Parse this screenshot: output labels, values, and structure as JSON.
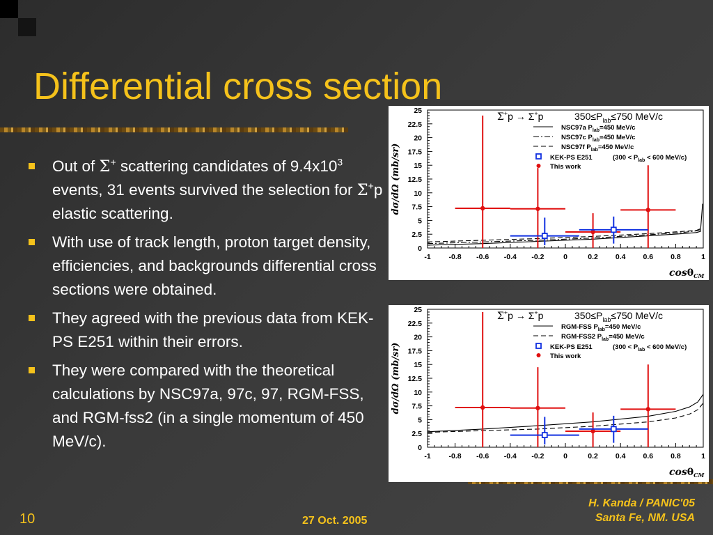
{
  "slide": {
    "title": "Differential cross section",
    "bullets": [
      {
        "t1": "Out of ",
        "sym1": "Σ",
        "sup1": "+",
        "t2": " scattering candidates of 9.4x10",
        "sup2": "3",
        "t3": " events, 31 events survived the selection for ",
        "sym2": "Σ",
        "sup3": "+",
        "t4": "p elastic scattering."
      },
      {
        "text": "With use of track length, proton target density, efficiencies, and backgrounds differential cross sections were obtained."
      },
      {
        "text": "They agreed with the previous data from KEK-PS E251 within their errors."
      },
      {
        "text": "They were compared with the theoretical calculations by NSC97a, 97c, 97, RGM-FSS, and RGM-fss2 (in a single momentum of 450 MeV/c)."
      }
    ],
    "footer": {
      "page": "10",
      "date": "27 Oct. 2005",
      "author_line1": "H. Kanda / PANIC'05",
      "author_line2": "Santa Fe, NM. USA"
    },
    "colors": {
      "title": "#f5c21b",
      "bullet": "#f5c21b",
      "text": "#ffffff",
      "background": "#3a3a3a"
    }
  },
  "chart_data": [
    {
      "type": "scatter",
      "reaction": {
        "a": "Σ",
        "b": "+",
        "c": "p → Σ",
        "d": "+",
        "e": "p"
      },
      "range": {
        "a": "350",
        "b": "≤",
        "c": "P",
        "d": "lab",
        "e": "≤",
        "f": "750 MeV/c"
      },
      "xlabel": {
        "a": "cos",
        "b": "θ",
        "c": "CM"
      },
      "ylabel": "dσ/dΩ (mb/sr)",
      "xlim": [
        -1,
        1
      ],
      "ylim": [
        0,
        25
      ],
      "xticks": [
        "-1",
        "-0.8",
        "-0.6",
        "-0.4",
        "-0.2",
        "0",
        "0.2",
        "0.4",
        "0.6",
        "0.8",
        "1"
      ],
      "yticks": [
        "0",
        "2.5",
        "5",
        "7.5",
        "10",
        "12.5",
        "15",
        "17.5",
        "20",
        "22.5",
        "25"
      ],
      "legend": [
        {
          "style": "solid",
          "a": "NSC97a  P",
          "b": "lab",
          "c": "=450 MeV/c"
        },
        {
          "style": "dashdot",
          "a": "NSC97c  P",
          "b": "lab",
          "c": "=450 MeV/c"
        },
        {
          "style": "dashed",
          "a": "NSC97f  P",
          "b": "lab",
          "c": "=450 MeV/c"
        }
      ],
      "series": [
        {
          "name": "This work",
          "marker": "circle",
          "color": "#e01010",
          "points": [
            {
              "x": -0.6,
              "y": 7.2,
              "xerr": 0.2,
              "ylo": 0,
              "yhi": 24
            },
            {
              "x": -0.2,
              "y": 7.1,
              "xerr": 0.2,
              "ylo": 0,
              "yhi": 14.5
            },
            {
              "x": 0.2,
              "y": 2.9,
              "xerr": 0.2,
              "ylo": 0,
              "yhi": 6.3
            },
            {
              "x": 0.6,
              "y": 6.9,
              "xerr": 0.2,
              "ylo": 0,
              "yhi": 15
            }
          ]
        },
        {
          "name": "KEK-PS E251",
          "range_note": {
            "a": "(300 < P",
            "b": "lab",
            "c": " < 600 MeV/c)"
          },
          "marker": "square",
          "color": "#1030e0",
          "points": [
            {
              "x": -0.15,
              "y": 2.2,
              "xerr": 0.25,
              "ylo": 0.5,
              "yhi": 5.5
            },
            {
              "x": 0.35,
              "y": 3.3,
              "xerr": 0.25,
              "ylo": 0.8,
              "yhi": 5.7
            }
          ]
        }
      ],
      "curves": [
        {
          "style": "solid",
          "x": [
            -1,
            -0.6,
            -0.2,
            0.2,
            0.6,
            0.85,
            0.95,
            0.98,
            0.995
          ],
          "y": [
            0.5,
            0.8,
            1.2,
            1.6,
            2.2,
            2.6,
            2.8,
            3,
            8
          ]
        },
        {
          "style": "dashdot",
          "x": [
            -1,
            -0.6,
            -0.2,
            0.2,
            0.6,
            0.85,
            0.95,
            0.99
          ],
          "y": [
            0.8,
            1.1,
            1.4,
            1.8,
            2.4,
            2.8,
            3.1,
            3.4
          ]
        },
        {
          "style": "dashed",
          "x": [
            -1,
            -0.6,
            -0.2,
            0.2,
            0.6,
            0.85,
            0.95,
            0.99
          ],
          "y": [
            1.1,
            1.4,
            1.7,
            2.1,
            2.6,
            3,
            3.2,
            3.6
          ]
        }
      ]
    },
    {
      "type": "scatter",
      "reaction": {
        "a": "Σ",
        "b": "+",
        "c": "p → Σ",
        "d": "+",
        "e": "p"
      },
      "range": {
        "a": "350",
        "b": "≤",
        "c": "P",
        "d": "lab",
        "e": "≤",
        "f": "750 MeV/c"
      },
      "xlabel": {
        "a": "cos",
        "b": "θ",
        "c": "CM"
      },
      "ylabel": "dσ/dΩ (mb/sr)",
      "xlim": [
        -1,
        1
      ],
      "ylim": [
        0,
        25
      ],
      "xticks": [
        "-1",
        "-0.8",
        "-0.6",
        "-0.4",
        "-0.2",
        "0",
        "0.2",
        "0.4",
        "0.6",
        "0.8",
        "1"
      ],
      "yticks": [
        "0",
        "2.5",
        "5",
        "7.5",
        "10",
        "12.5",
        "15",
        "17.5",
        "20",
        "22.5",
        "25"
      ],
      "legend": [
        {
          "style": "solid",
          "a": "RGM-FSS   P",
          "b": "lab",
          "c": "=450 MeV/c"
        },
        {
          "style": "dashed",
          "a": "RGM-FSS2  P",
          "b": "lab",
          "c": "=450 MeV/c"
        }
      ],
      "series": [
        {
          "name": "This work",
          "marker": "circle",
          "color": "#e01010",
          "points": [
            {
              "x": -0.6,
              "y": 7.2,
              "xerr": 0.2,
              "ylo": 0,
              "yhi": 24.5
            },
            {
              "x": -0.2,
              "y": 7.1,
              "xerr": 0.2,
              "ylo": 0,
              "yhi": 14.5
            },
            {
              "x": 0.2,
              "y": 2.9,
              "xerr": 0.2,
              "ylo": 0,
              "yhi": 6.3
            },
            {
              "x": 0.6,
              "y": 6.9,
              "xerr": 0.2,
              "ylo": 0,
              "yhi": 15
            }
          ]
        },
        {
          "name": "KEK-PS E251",
          "range_note": {
            "a": "(300 < P",
            "b": "lab",
            "c": " < 600 MeV/c)"
          },
          "marker": "square",
          "color": "#1030e0",
          "points": [
            {
              "x": -0.15,
              "y": 2.2,
              "xerr": 0.25,
              "ylo": 0.5,
              "yhi": 5.5
            },
            {
              "x": 0.35,
              "y": 3.3,
              "xerr": 0.25,
              "ylo": 0.8,
              "yhi": 5.7
            }
          ]
        }
      ],
      "curves": [
        {
          "style": "solid",
          "x": [
            -1,
            -0.6,
            -0.2,
            0.2,
            0.6,
            0.8,
            0.9,
            0.96,
            1
          ],
          "y": [
            2.8,
            3.3,
            3.9,
            4.6,
            5.6,
            6.5,
            7.3,
            8.2,
            9.6
          ]
        },
        {
          "style": "dashed",
          "x": [
            -1,
            -0.6,
            -0.2,
            0.2,
            0.6,
            0.8,
            0.9,
            0.96,
            1
          ],
          "y": [
            2.7,
            3,
            3.3,
            3.8,
            4.6,
            5.3,
            6,
            6.8,
            8
          ]
        }
      ]
    }
  ]
}
